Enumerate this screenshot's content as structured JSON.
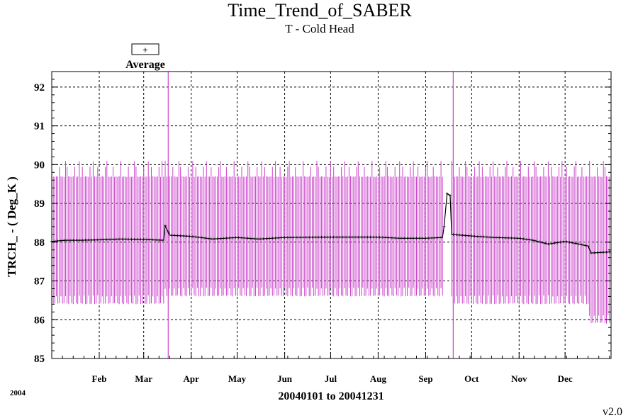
{
  "chart_data": {
    "type": "line",
    "title": "Time_Trend_of_SABER",
    "subtitle": "T - Cold Head",
    "ylabel": "TRCH_ - ( Deg_K )",
    "xlabel": "20040101 to 20041231",
    "year_label": "2004",
    "version": "v2.0",
    "legend": {
      "symbol": "+",
      "label": "Average",
      "placement": "top-left"
    },
    "colors": {
      "range": "#cc44cc",
      "average": "#000000"
    },
    "xlim": [
      "2004-01-01",
      "2004-12-31"
    ],
    "ylim": [
      85,
      92.4
    ],
    "y_ticks": [
      85,
      86,
      87,
      88,
      89,
      90,
      91,
      92
    ],
    "x_tick_labels": [
      {
        "label": "Feb",
        "date": "2004-02-01"
      },
      {
        "label": "Mar",
        "date": "2004-03-01"
      },
      {
        "label": "Apr",
        "date": "2004-04-01"
      },
      {
        "label": "May",
        "date": "2004-05-01"
      },
      {
        "label": "Jun",
        "date": "2004-06-01"
      },
      {
        "label": "Jul",
        "date": "2004-07-01"
      },
      {
        "label": "Aug",
        "date": "2004-08-01"
      },
      {
        "label": "Sep",
        "date": "2004-09-01"
      },
      {
        "label": "Oct",
        "date": "2004-10-01"
      },
      {
        "label": "Nov",
        "date": "2004-11-01"
      },
      {
        "label": "Dec",
        "date": "2004-12-01"
      }
    ],
    "grid": true,
    "series": [
      {
        "name": "Average",
        "x": [
          "2004-01-01",
          "2004-01-10",
          "2004-01-20",
          "2004-02-01",
          "2004-02-15",
          "2004-03-01",
          "2004-03-14",
          "2004-03-15",
          "2004-03-18",
          "2004-04-01",
          "2004-04-15",
          "2004-05-01",
          "2004-05-15",
          "2004-06-01",
          "2004-07-01",
          "2004-08-01",
          "2004-08-15",
          "2004-09-01",
          "2004-09-12",
          "2004-09-13",
          "2004-09-15",
          "2004-09-17",
          "2004-09-18",
          "2004-10-01",
          "2004-10-15",
          "2004-11-01",
          "2004-11-10",
          "2004-11-20",
          "2004-12-01",
          "2004-12-10",
          "2004-12-16",
          "2004-12-18",
          "2004-12-31"
        ],
        "y": [
          88.02,
          88.05,
          88.05,
          88.06,
          88.08,
          88.07,
          88.05,
          88.42,
          88.18,
          88.15,
          88.08,
          88.12,
          88.08,
          88.12,
          88.13,
          88.13,
          88.1,
          88.1,
          88.12,
          88.4,
          89.25,
          89.2,
          88.2,
          88.16,
          88.12,
          88.1,
          88.05,
          87.95,
          88.02,
          87.95,
          87.9,
          87.72,
          87.75
        ]
      }
    ],
    "range_bands": [
      {
        "from": "2004-01-01",
        "to": "2004-03-14",
        "min": 86.4,
        "max": 89.7
      },
      {
        "from": "2004-03-15",
        "to": "2004-09-12",
        "min": 86.6,
        "max": 89.7
      },
      {
        "from": "2004-09-18",
        "to": "2004-12-16",
        "min": 86.4,
        "max": 89.7
      },
      {
        "from": "2004-12-17",
        "to": "2004-12-31",
        "min": 85.9,
        "max": 89.7
      }
    ],
    "spikes": [
      {
        "date": "2004-03-17",
        "min": 85,
        "max": 92.4
      },
      {
        "date": "2004-09-19",
        "min": 85,
        "max": 92.4
      }
    ]
  }
}
